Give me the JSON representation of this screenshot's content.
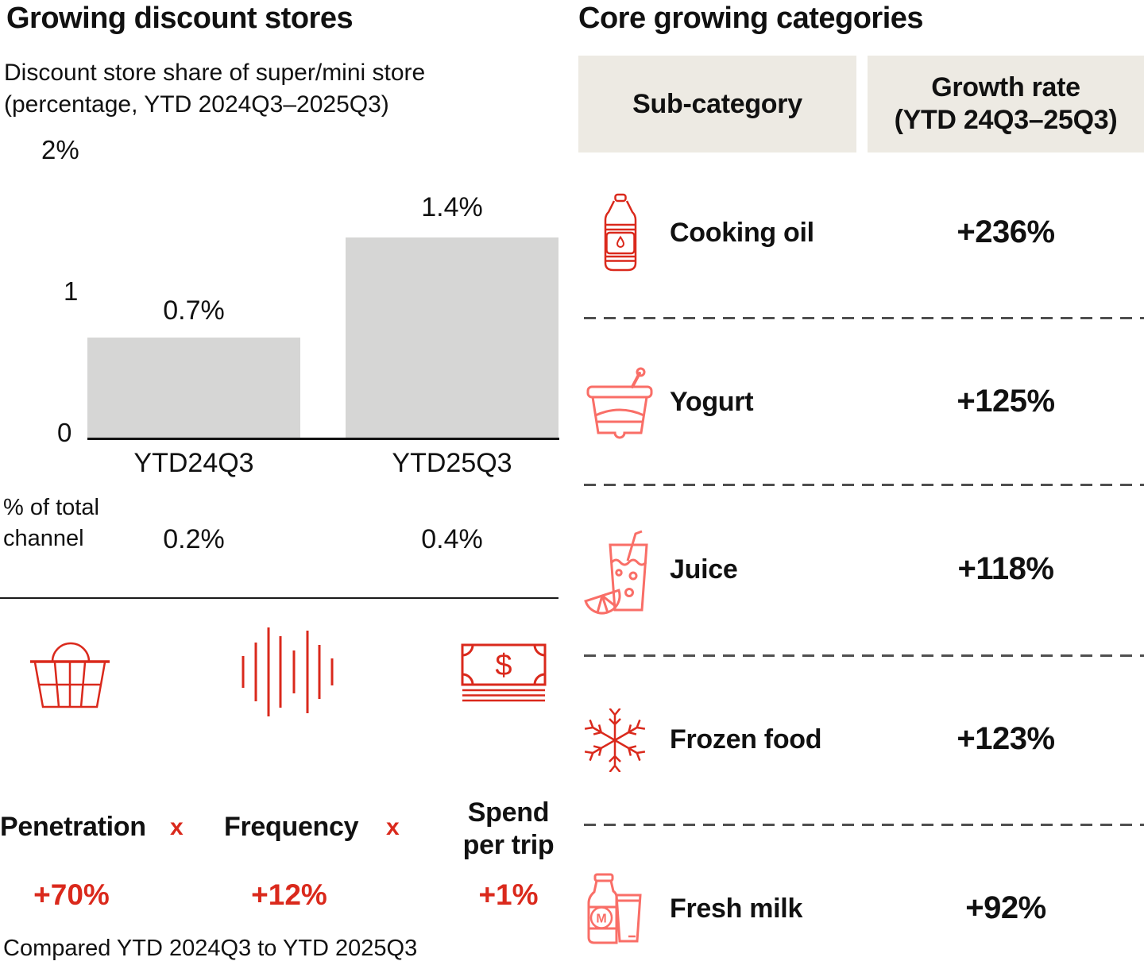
{
  "colors": {
    "brand_red": "#da291c",
    "salmon_red": "#f96e67",
    "bar_gray": "#d6d6d5",
    "header_beige": "#edeae3",
    "text_black": "#111111",
    "dash_gray": "#4f4f4f"
  },
  "chart_data": [
    {
      "type": "bar",
      "title": "Growing discount stores",
      "subtitle": "Discount store share of super/mini store (percentage, YTD 2024Q3–2025Q3)",
      "categories": [
        "YTD24Q3",
        "YTD25Q3"
      ],
      "values": [
        0.7,
        1.4
      ],
      "value_labels": [
        "0.7%",
        "1.4%"
      ],
      "xlabel": "",
      "ylabel": "",
      "ylim": [
        0,
        2
      ],
      "yticks": [
        {
          "value": 0,
          "label": "0"
        },
        {
          "value": 1,
          "label": "1"
        },
        {
          "value": 2,
          "label": "2%"
        }
      ],
      "grid": false,
      "legend": "none",
      "bar_color": "#d6d6d5",
      "annotations": {
        "pct_of_total_channel": {
          "label": "% of total channel",
          "values": [
            "0.2%",
            "0.4%"
          ]
        },
        "growth_drivers": [
          {
            "label": "Penetration",
            "value": "+70%"
          },
          {
            "label": "Frequency",
            "value": "+12%"
          },
          {
            "label": "Spend per trip",
            "value": "+1%"
          }
        ],
        "footnote": "Compared YTD 2024Q3 to YTD 2025Q3"
      }
    },
    {
      "type": "table",
      "title": "Core growing categories",
      "columns": [
        "Sub-category",
        "Growth rate (YTD 24Q3–25Q3)"
      ],
      "rows": [
        [
          "Cooking oil",
          "+236%"
        ],
        [
          "Yogurt",
          "+125%"
        ],
        [
          "Juice",
          "+118%"
        ],
        [
          "Frozen food",
          "+123%"
        ],
        [
          "Fresh milk",
          "+92%"
        ]
      ]
    }
  ],
  "left_panel": {
    "title": "Growing discount stores",
    "subtitle_line1": "Discount store share of super/mini store",
    "subtitle_line2": "(percentage, YTD 2024Q3–2025Q3)",
    "ytick_top": "2%",
    "ytick_mid": "1",
    "ytick_zero": "0",
    "bars": [
      {
        "value_label": "0.7%",
        "x_label": "YTD24Q3",
        "pct_total": "0.2%"
      },
      {
        "value_label": "1.4%",
        "x_label": "YTD25Q3",
        "pct_total": "0.4%"
      }
    ],
    "pct_row_label": "% of total channel",
    "drivers": {
      "separator": "x",
      "items": [
        {
          "icon": "basket-icon",
          "label": "Penetration",
          "value": "+70%"
        },
        {
          "icon": "frequency-icon",
          "label": "Frequency",
          "value": "+12%"
        },
        {
          "icon": "money-icon",
          "label": "Spend per trip",
          "value": "+1%"
        }
      ]
    },
    "footnote": "Compared YTD 2024Q3 to YTD 2025Q3"
  },
  "right_panel": {
    "title": "Core growing categories",
    "header": {
      "col1": "Sub-category",
      "col2_line1": "Growth rate",
      "col2_line2": "(YTD 24Q3–25Q3)"
    },
    "rows": [
      {
        "icon": "cooking-oil-icon",
        "label": "Cooking oil",
        "value": "+236%"
      },
      {
        "icon": "yogurt-icon",
        "label": "Yogurt",
        "value": "+125%"
      },
      {
        "icon": "juice-icon",
        "label": "Juice",
        "value": "+118%"
      },
      {
        "icon": "frozen-food-icon",
        "label": "Frozen food",
        "value": "+123%"
      },
      {
        "icon": "fresh-milk-icon",
        "label": "Fresh milk",
        "value": "+92%"
      }
    ]
  }
}
